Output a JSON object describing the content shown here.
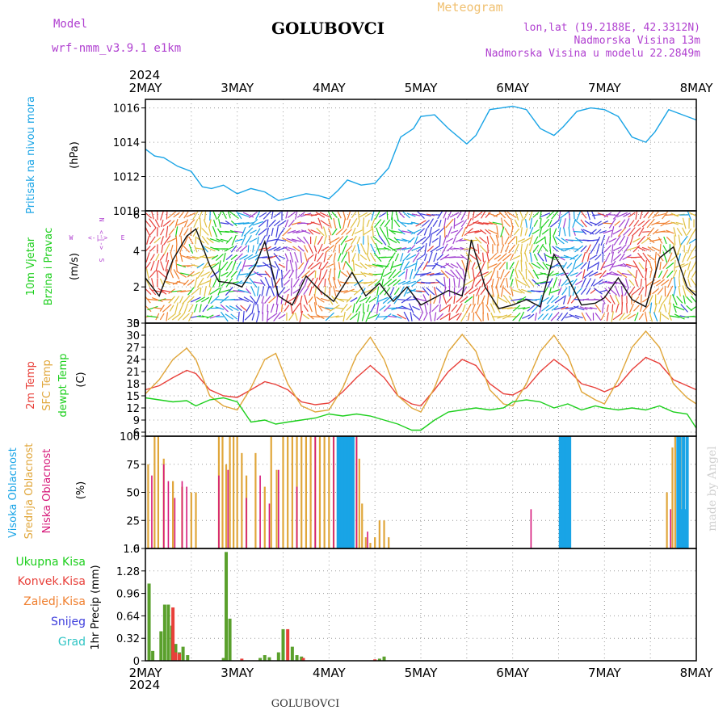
{
  "header": {
    "model_label": "Model",
    "model_name": "wrf-nmm_v3.9.1 e1km",
    "station": "GOLUBOVCI",
    "meteogram_label": "Meteogram",
    "lonlat": "lon,lat (19.2188E, 42.3312N)",
    "elevation": "Nadmorska Visina 13m",
    "model_elevation": "Nadmorska Visina u modelu 22.2849m",
    "footer_station": "GOLUBOVCI",
    "credit": "made by Angel"
  },
  "colors": {
    "pressure": "#19a4e6",
    "temp2m": "#e8403a",
    "sfc_temp": "#e0a63a",
    "dewpoint": "#1ccf1c",
    "high_cloud": "#19a4e6",
    "mid_cloud": "#e0a63a",
    "low_cloud": "#d6197a",
    "total_precip": "#5aa02c",
    "convective": "#e8403a",
    "frozen": "#f08030",
    "snow": "#3c3cdc",
    "hail": "#2ec4c4",
    "purple_text": "#b040d0",
    "meteogram_text": "#f0c070"
  },
  "x_axis": {
    "year": "2024",
    "ticks": [
      "2MAY",
      "3MAY",
      "4MAY",
      "5MAY",
      "6MAY",
      "7MAY",
      "8MAY"
    ]
  },
  "chart_data": [
    {
      "type": "line",
      "panel": "pressure",
      "ylabel": "Pritisak na nivou mora",
      "unit": "(hPa)",
      "ylim": [
        1010,
        1016.5
      ],
      "yticks": [
        "1010",
        "1012",
        "1014",
        "1016"
      ],
      "x": [
        0,
        0.1,
        0.2,
        0.35,
        0.5,
        0.62,
        0.72,
        0.85,
        1.0,
        1.15,
        1.3,
        1.45,
        1.6,
        1.75,
        1.88,
        2.0,
        2.1,
        2.2,
        2.35,
        2.5,
        2.65,
        2.78,
        2.92,
        3.0,
        3.15,
        3.3,
        3.5,
        3.6,
        3.75,
        3.88,
        4.0,
        4.15,
        4.3,
        4.45,
        4.55,
        4.7,
        4.85,
        5.0,
        5.15,
        5.3,
        5.45,
        5.55,
        5.7,
        5.85,
        6.0
      ],
      "series": [
        {
          "values": [
            1013.6,
            1013.2,
            1013.1,
            1012.6,
            1012.3,
            1011.4,
            1011.3,
            1011.5,
            1011.0,
            1011.3,
            1011.1,
            1010.6,
            1010.8,
            1011.0,
            1010.9,
            1010.7,
            1011.2,
            1011.8,
            1011.5,
            1011.6,
            1012.5,
            1014.3,
            1014.8,
            1015.5,
            1015.6,
            1014.8,
            1013.9,
            1014.4,
            1015.9,
            1016.0,
            1016.1,
            1015.9,
            1014.8,
            1014.4,
            1014.9,
            1015.8,
            1016.0,
            1015.9,
            1015.5,
            1014.3,
            1014.0,
            1014.6,
            1015.9,
            1015.6,
            1015.3
          ]
        }
      ]
    },
    {
      "type": "line",
      "panel": "wind",
      "ylabel": "10m Vjetar Brzina i Pravac",
      "unit": "(m/s)",
      "direction_key": [
        "N",
        "E",
        "S",
        "W"
      ],
      "ylim": [
        0,
        6.2
      ],
      "yticks": [
        "0",
        "2",
        "4",
        "6"
      ],
      "x": [
        0,
        0.15,
        0.3,
        0.45,
        0.55,
        0.7,
        0.8,
        0.95,
        1.05,
        1.2,
        1.3,
        1.45,
        1.6,
        1.75,
        1.9,
        2.05,
        2.25,
        2.4,
        2.55,
        2.7,
        2.85,
        3.0,
        3.15,
        3.3,
        3.45,
        3.55,
        3.7,
        3.85,
        4.0,
        4.15,
        4.3,
        4.45,
        4.6,
        4.75,
        4.9,
        5.0,
        5.15,
        5.3,
        5.45,
        5.6,
        5.75,
        5.9,
        6.0
      ],
      "series": [
        {
          "values": [
            2.5,
            1.5,
            3.5,
            4.8,
            5.2,
            3.2,
            2.3,
            2.2,
            2.0,
            3.2,
            4.5,
            1.5,
            1.0,
            2.6,
            1.8,
            1.2,
            2.8,
            1.5,
            2.2,
            1.2,
            2.0,
            1.0,
            1.4,
            1.8,
            1.5,
            4.6,
            2.0,
            0.8,
            1.0,
            1.3,
            0.9,
            3.8,
            2.5,
            1.0,
            1.1,
            1.4,
            2.5,
            1.3,
            0.9,
            3.6,
            4.2,
            2.0,
            1.5
          ]
        }
      ]
    },
    {
      "type": "line",
      "panel": "temperature",
      "ylabel": "(C)",
      "ylim": [
        5,
        33
      ],
      "yticks": [
        "6",
        "9",
        "12",
        "15",
        "18",
        "21",
        "24",
        "27",
        "30",
        "33"
      ],
      "x": [
        0,
        0.15,
        0.3,
        0.45,
        0.55,
        0.7,
        0.85,
        1.0,
        1.15,
        1.3,
        1.42,
        1.55,
        1.7,
        1.85,
        2.0,
        2.15,
        2.3,
        2.45,
        2.6,
        2.75,
        2.9,
        3.0,
        3.15,
        3.3,
        3.45,
        3.6,
        3.75,
        3.9,
        4.0,
        4.15,
        4.3,
        4.45,
        4.6,
        4.75,
        4.9,
        5.0,
        5.15,
        5.3,
        5.45,
        5.6,
        5.75,
        5.9,
        6.0
      ],
      "series": [
        {
          "name": "2m Temp",
          "values": [
            16.5,
            17.5,
            19.5,
            21.3,
            20.5,
            16.5,
            15.0,
            14.6,
            16.5,
            18.5,
            17.8,
            16.5,
            13.5,
            12.8,
            13.2,
            16.0,
            19.5,
            22.5,
            19.5,
            15.0,
            13.0,
            12.5,
            16.5,
            21.0,
            24.0,
            22.5,
            18.0,
            15.5,
            15.2,
            17.0,
            21.0,
            24.0,
            21.5,
            18.0,
            17.0,
            16.0,
            17.5,
            21.5,
            24.5,
            23.0,
            19.0,
            17.5,
            16.5
          ]
        },
        {
          "name": "SFC Temp",
          "values": [
            15.5,
            19.0,
            24.0,
            26.8,
            24.0,
            15.0,
            12.5,
            11.5,
            17.0,
            24.0,
            25.5,
            18.0,
            12.5,
            11.0,
            11.5,
            17.0,
            25.0,
            29.5,
            24.0,
            15.0,
            12.0,
            11.0,
            17.0,
            26.0,
            30.2,
            26.0,
            16.5,
            13.0,
            12.5,
            18.0,
            26.0,
            30.0,
            25.0,
            16.0,
            14.0,
            13.0,
            19.0,
            27.0,
            31.0,
            27.0,
            18.0,
            14.5,
            13.0
          ]
        },
        {
          "name": "dewpt Temp",
          "values": [
            14.5,
            14.0,
            13.5,
            13.8,
            12.5,
            14.0,
            14.5,
            13.5,
            8.5,
            9.0,
            8.0,
            8.5,
            9.0,
            9.5,
            10.5,
            10.0,
            10.5,
            10.0,
            9.0,
            8.0,
            6.5,
            6.5,
            9.0,
            11.0,
            11.5,
            12.0,
            11.5,
            12.0,
            13.5,
            14.0,
            13.5,
            12.0,
            13.0,
            11.5,
            12.5,
            12.0,
            11.5,
            12.0,
            11.5,
            12.5,
            11.0,
            10.5,
            7.0
          ]
        }
      ]
    },
    {
      "type": "bar",
      "panel": "cloud",
      "ylabel": "(%)",
      "ylim": [
        0,
        100
      ],
      "yticks": [
        "0",
        "25",
        "50",
        "75",
        "100"
      ],
      "series": [
        {
          "name": "Visoka Oblacnost",
          "x": [
            2.1,
            2.12,
            2.14,
            2.16,
            2.18,
            2.2,
            2.22,
            2.24,
            2.26,
            4.52,
            4.54,
            4.56,
            4.58,
            4.6,
            4.62,
            5.8,
            5.82,
            5.84,
            5.86,
            5.88,
            5.9
          ],
          "values": [
            100,
            100,
            100,
            100,
            100,
            100,
            100,
            100,
            100,
            100,
            100,
            100,
            100,
            100,
            100,
            100,
            100,
            35,
            100,
            35,
            100
          ]
        },
        {
          "name": "Srednja Oblacnost",
          "x": [
            0.03,
            0.1,
            0.14,
            0.2,
            0.3,
            0.4,
            0.5,
            0.55,
            0.8,
            0.84,
            0.88,
            0.92,
            0.96,
            1.0,
            1.05,
            1.1,
            1.2,
            1.3,
            1.37,
            1.43,
            1.5,
            1.55,
            1.6,
            1.65,
            1.7,
            1.75,
            1.8,
            1.85,
            1.9,
            1.95,
            2.0,
            2.05,
            2.3,
            2.33,
            2.36,
            2.4,
            2.45,
            2.5,
            2.55,
            2.6,
            2.65,
            5.68,
            5.74,
            5.77,
            5.8,
            5.83,
            5.86
          ],
          "values": [
            75,
            100,
            100,
            80,
            60,
            55,
            50,
            50,
            100,
            100,
            75,
            100,
            100,
            100,
            85,
            65,
            85,
            55,
            100,
            70,
            100,
            100,
            100,
            100,
            100,
            100,
            100,
            100,
            100,
            100,
            100,
            100,
            100,
            80,
            40,
            10,
            5,
            10,
            25,
            25,
            10,
            50,
            90,
            100,
            100,
            100,
            100
          ]
        },
        {
          "name": "Niska Oblacnost",
          "x": [
            0.07,
            0.2,
            0.25,
            0.32,
            0.4,
            0.45,
            0.8,
            0.9,
            1.1,
            1.25,
            1.35,
            1.45,
            1.65,
            1.85,
            2.05,
            2.3,
            2.42,
            4.2,
            5.72,
            5.8
          ],
          "values": [
            65,
            75,
            60,
            45,
            60,
            55,
            65,
            70,
            45,
            65,
            40,
            70,
            55,
            100,
            100,
            100,
            15,
            35,
            35,
            30
          ]
        }
      ]
    },
    {
      "type": "bar",
      "panel": "precipitation",
      "ylabel": "1hr Precip (mm)",
      "ylim": [
        0,
        1.6
      ],
      "yticks": [
        "0",
        "0.32",
        "0.64",
        "0.96",
        "1.28",
        "1.6"
      ],
      "series": [
        {
          "name": "Ukupna Kisa",
          "x": [
            0.04,
            0.08,
            0.17,
            0.21,
            0.25,
            0.29,
            0.33,
            0.37,
            0.41,
            0.46,
            0.85,
            0.88,
            0.92,
            1.25,
            1.3,
            1.35,
            1.45,
            1.5,
            1.6,
            1.65,
            1.7,
            2.55,
            2.6
          ],
          "values": [
            1.1,
            0.14,
            0.42,
            0.8,
            0.8,
            0.5,
            0.24,
            0.12,
            0.2,
            0.08,
            0.04,
            1.55,
            0.6,
            0.04,
            0.08,
            0.05,
            0.12,
            0.45,
            0.2,
            0.08,
            0.06,
            0.03,
            0.06
          ]
        },
        {
          "name": "Konvek.Kisa",
          "x": [
            0.3,
            0.33,
            0.37,
            1.05,
            1.55,
            1.72,
            2.5
          ],
          "values": [
            0.76,
            0.12,
            0.1,
            0.03,
            0.45,
            0.04,
            0.02
          ]
        },
        {
          "name": "Zaledj.Kisa",
          "x": [],
          "values": []
        },
        {
          "name": "Snijeg",
          "x": [],
          "values": []
        },
        {
          "name": "Grad",
          "x": [],
          "values": []
        }
      ]
    }
  ]
}
